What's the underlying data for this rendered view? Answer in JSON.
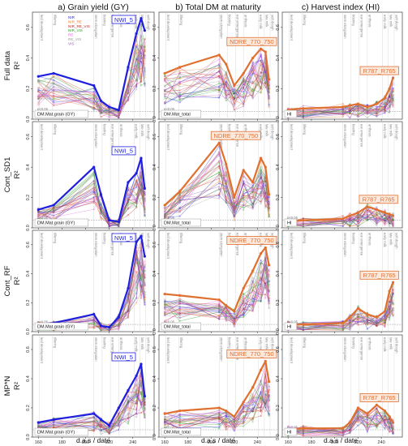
{
  "column_titles": [
    "a) Grain yield (GY)",
    "b) Total DM at maturity",
    "c) Harvest index (HI)"
  ],
  "row_titles": [
    "Full data",
    "Cont_SD1",
    "Cont_RF",
    "MP*N"
  ],
  "y_axis_label": "R²",
  "x_axis_label": "d.a.s / date",
  "legend": [
    {
      "name": "NIR",
      "color": "#1f1fdd"
    },
    {
      "name": "NIR_RE",
      "color": "#e87a2a"
    },
    {
      "name": "NIR_RE_VIS",
      "color": "#cc2222"
    },
    {
      "name": "NIR_VIS",
      "color": "#22a022"
    },
    {
      "name": "RE",
      "color": "#e060e0"
    },
    {
      "name": "RE_VIS",
      "color": "#9a9a9a"
    },
    {
      "name": "VIS",
      "color": "#9b59b6"
    }
  ],
  "pval_label": "p<0.05",
  "chart_data": [
    {
      "type": "line",
      "row": "Full data",
      "col": "GY",
      "corner_label": "DM.Mat.grain (GY)",
      "highlight": "NWI_5",
      "highlight_color": "#1f1fdd",
      "x": [
        160,
        173,
        207,
        213,
        220,
        228,
        236,
        243,
        247,
        250
      ],
      "values": [
        0.28,
        0.3,
        0.22,
        0.12,
        0.08,
        0.06,
        0.34,
        0.56,
        0.66,
        0.58
      ],
      "ylim": [
        0,
        0.7
      ],
      "pval": 0.05
    },
    {
      "type": "line",
      "row": "Full data",
      "col": "DM",
      "corner_label": "DM.Mat_total",
      "highlight": "NDRE_770_750",
      "highlight_color": "#e07030",
      "x": [
        160,
        173,
        207,
        213,
        220,
        228,
        236,
        243,
        247,
        250
      ],
      "values": [
        0.3,
        0.34,
        0.42,
        0.36,
        0.22,
        0.3,
        0.4,
        0.46,
        0.44,
        0.26
      ],
      "ylim": [
        0,
        0.7
      ],
      "pval": 0.05
    },
    {
      "type": "line",
      "row": "Full data",
      "col": "HI",
      "corner_label": "HI",
      "highlight": "R787_R765",
      "highlight_color": "#e07030",
      "x": [
        160,
        173,
        207,
        213,
        220,
        228,
        236,
        243,
        247,
        250
      ],
      "values": [
        0.06,
        0.07,
        0.08,
        0.09,
        0.1,
        0.08,
        0.1,
        0.14,
        0.2,
        0.27
      ],
      "ylim": [
        0,
        0.7
      ],
      "pval": 0.05
    },
    {
      "type": "line",
      "row": "Cont_SD1",
      "col": "GY",
      "corner_label": "DM.Mat.grain (GY)",
      "highlight": "NWI_5",
      "highlight_color": "#1f1fdd",
      "x": [
        160,
        173,
        207,
        213,
        220,
        228,
        236,
        243,
        247,
        250
      ],
      "values": [
        0.12,
        0.15,
        0.4,
        0.22,
        0.05,
        0.04,
        0.3,
        0.36,
        0.46,
        0.26
      ],
      "ylim": [
        0,
        0.7
      ],
      "pval": 0.05
    },
    {
      "type": "line",
      "row": "Cont_SD1",
      "col": "DM",
      "corner_label": "DM.Mat_total",
      "highlight": "NDRE_770_750",
      "highlight_color": "#e07030",
      "x": [
        160,
        173,
        207,
        213,
        220,
        228,
        236,
        243,
        247,
        250
      ],
      "values": [
        0.15,
        0.24,
        0.56,
        0.42,
        0.2,
        0.38,
        0.3,
        0.46,
        0.4,
        0.22
      ],
      "ylim": [
        0,
        0.7
      ],
      "pval": 0.05
    },
    {
      "type": "line",
      "row": "Cont_SD1",
      "col": "HI",
      "corner_label": "HI",
      "highlight": "R787_R765",
      "highlight_color": "#e07030",
      "x": [
        160,
        173,
        207,
        213,
        220,
        228,
        236,
        243,
        247,
        250
      ],
      "values": [
        0.04,
        0.05,
        0.06,
        0.08,
        0.1,
        0.14,
        0.12,
        0.1,
        0.09,
        0.08
      ],
      "ylim": [
        0,
        0.7
      ],
      "pval": 0.05
    },
    {
      "type": "line",
      "row": "Cont_RF",
      "col": "GY",
      "corner_label": "DM.Mat.grain (GY)",
      "highlight": "NWI_5",
      "highlight_color": "#1f1fdd",
      "x": [
        160,
        173,
        207,
        213,
        220,
        228,
        236,
        243,
        247,
        250
      ],
      "values": [
        0.05,
        0.06,
        0.12,
        0.04,
        0.03,
        0.1,
        0.3,
        0.62,
        0.66,
        0.52
      ],
      "ylim": [
        0,
        0.7
      ],
      "pval": 0.05
    },
    {
      "type": "line",
      "row": "Cont_RF",
      "col": "DM",
      "corner_label": "DM.Mat_total",
      "highlight": "NDRE_770_750",
      "highlight_color": "#e07030",
      "x": [
        160,
        173,
        207,
        213,
        220,
        228,
        236,
        243,
        247,
        250
      ],
      "values": [
        0.26,
        0.25,
        0.22,
        0.18,
        0.14,
        0.3,
        0.42,
        0.54,
        0.58,
        0.46
      ],
      "ylim": [
        0,
        0.7
      ],
      "pval": 0.05
    },
    {
      "type": "line",
      "row": "Cont_RF",
      "col": "HI",
      "corner_label": "HI",
      "highlight": "R787_R765",
      "highlight_color": "#e07030",
      "x": [
        160,
        173,
        207,
        213,
        220,
        228,
        236,
        243,
        247,
        250
      ],
      "values": [
        0.05,
        0.05,
        0.06,
        0.1,
        0.16,
        0.12,
        0.1,
        0.14,
        0.28,
        0.34
      ],
      "ylim": [
        0,
        0.7
      ],
      "pval": 0.05
    },
    {
      "type": "line",
      "row": "MP*N",
      "col": "GY",
      "corner_label": "DM.Mat.grain (GY)",
      "highlight": "NWI_5",
      "highlight_color": "#1f1fdd",
      "x": [
        160,
        173,
        207,
        213,
        220,
        228,
        236,
        243,
        247,
        250
      ],
      "values": [
        0.1,
        0.12,
        0.16,
        0.12,
        0.08,
        0.2,
        0.32,
        0.42,
        0.5,
        0.28
      ],
      "ylim": [
        0,
        0.7
      ],
      "pval": 0.05
    },
    {
      "type": "line",
      "row": "MP*N",
      "col": "DM",
      "corner_label": "DM.Mat_total",
      "highlight": "NDRE_770_750",
      "highlight_color": "#e07030",
      "x": [
        160,
        173,
        207,
        213,
        220,
        228,
        236,
        243,
        247,
        250
      ],
      "values": [
        0.16,
        0.18,
        0.2,
        0.18,
        0.14,
        0.24,
        0.34,
        0.46,
        0.52,
        0.38
      ],
      "ylim": [
        0,
        0.7
      ],
      "pval": 0.05
    },
    {
      "type": "line",
      "row": "MP*N",
      "col": "HI",
      "corner_label": "HI",
      "highlight": "R787_R765",
      "highlight_color": "#e07030",
      "x": [
        160,
        173,
        207,
        213,
        220,
        228,
        236,
        243,
        247,
        250
      ],
      "values": [
        0.05,
        0.06,
        0.06,
        0.1,
        0.2,
        0.16,
        0.22,
        0.18,
        0.14,
        0.1
      ],
      "ylim": [
        0,
        0.7
      ],
      "pval": 0.05
    }
  ],
  "y_ticks": [
    "0.0",
    "0.2",
    "0.4",
    "0.6"
  ],
  "x_ticks": [
    "160",
    "180",
    "200",
    "220",
    "240"
  ],
  "x_range": [
    155,
    258
  ],
  "stage_labels": [
    "leaf development",
    "tillering",
    "stem elongation",
    "booting",
    "ear emergence",
    "anthesis",
    "early milk",
    "late milk",
    "soft dough"
  ],
  "stage_x": [
    161,
    172,
    207,
    214,
    221,
    228,
    241,
    246,
    251
  ]
}
